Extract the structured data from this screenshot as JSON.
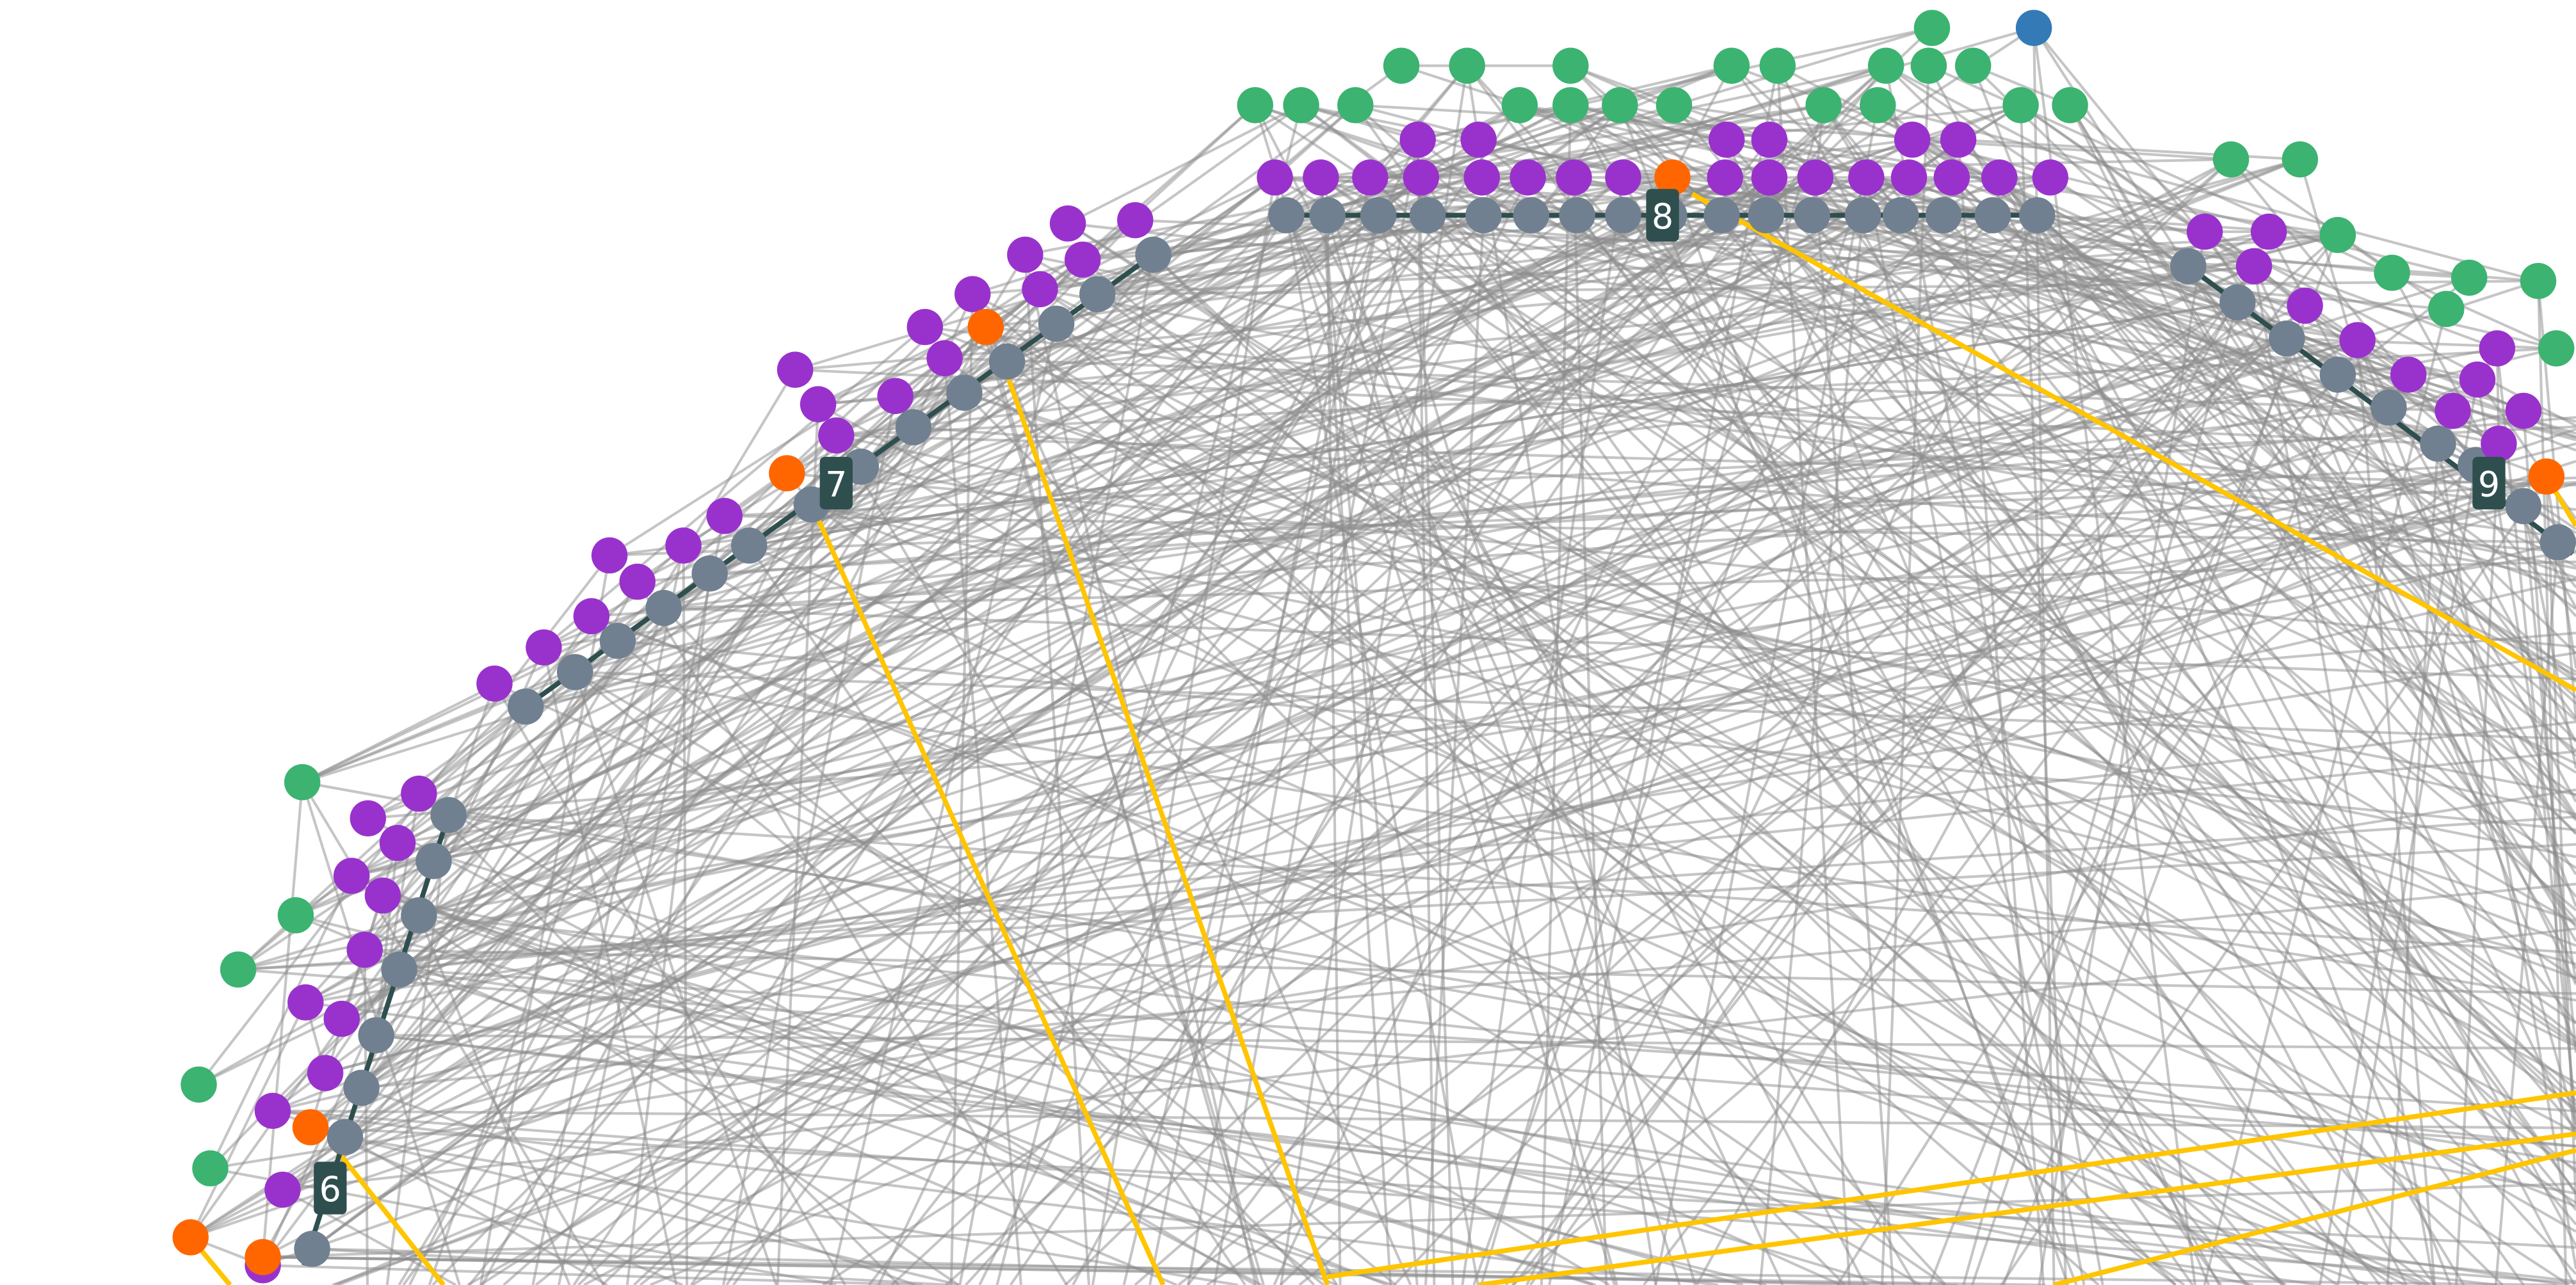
{
  "colors": {
    "green": "#3cb371",
    "purple": "#9932cc",
    "gray": "#708090",
    "orange": "#ff6600",
    "blue": "#337ab7",
    "spine": "#2f4f4f",
    "highlight_edge": "#ffc500",
    "edge": "#8c8c8c"
  },
  "groups": [
    {
      "label": "6"
    },
    {
      "label": "7"
    },
    {
      "label": "8"
    },
    {
      "label": "9"
    }
  ]
}
